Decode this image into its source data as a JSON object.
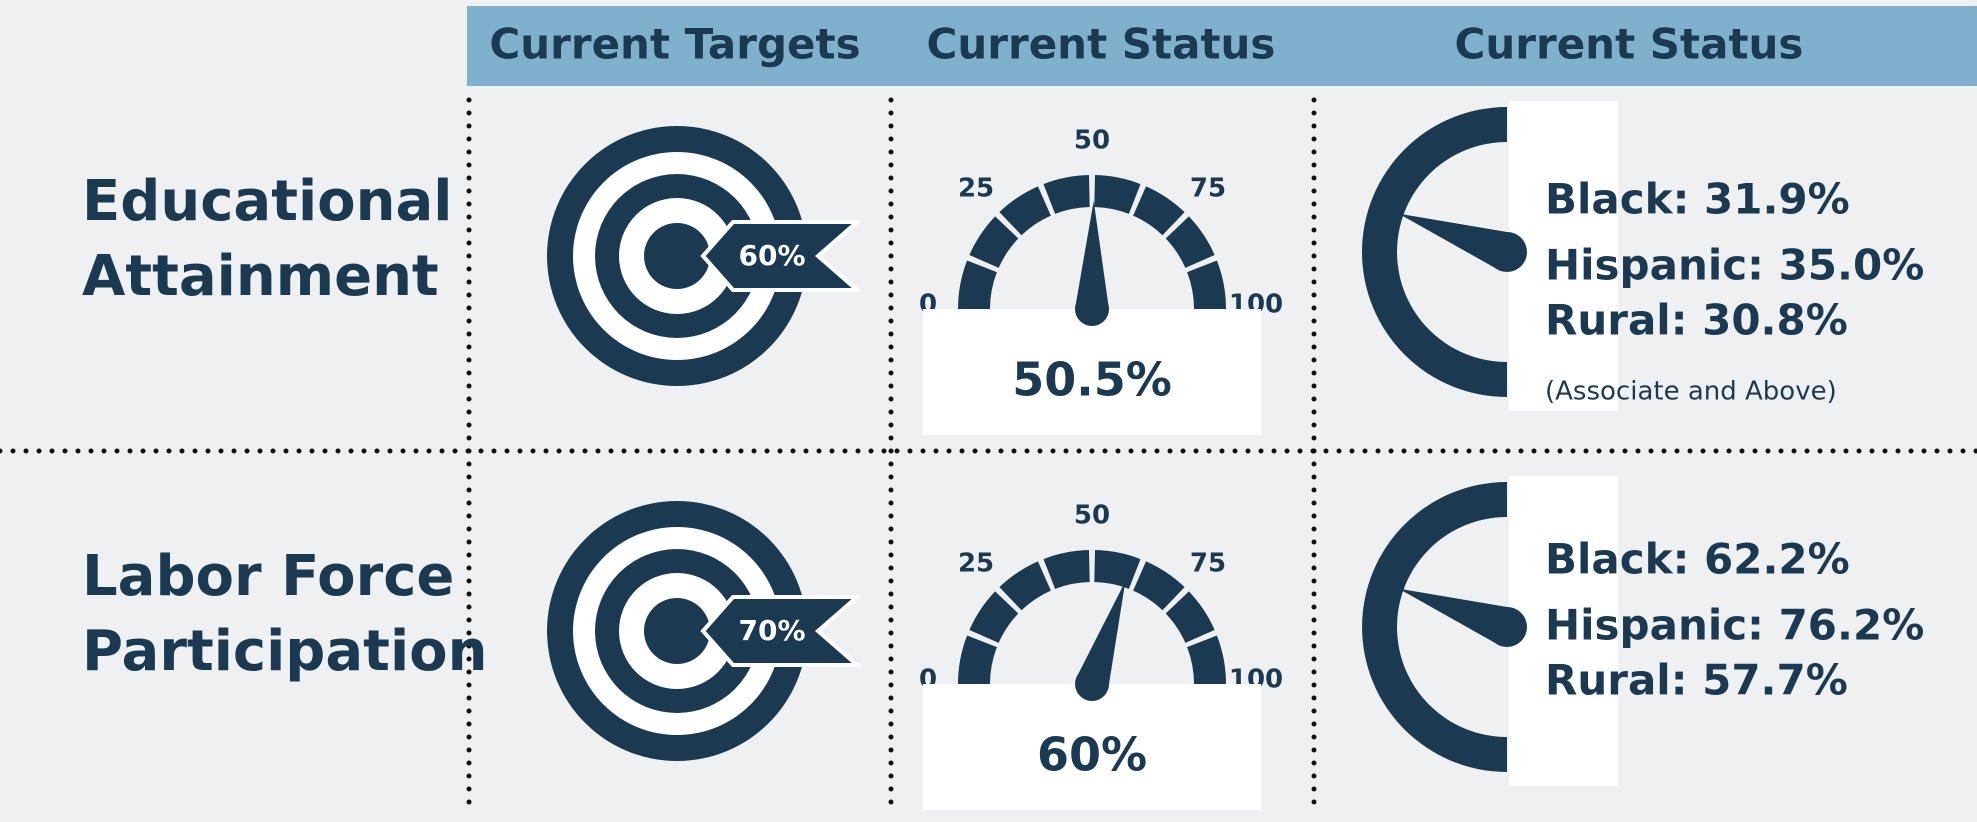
{
  "header": {
    "columns": [
      "Current Targets",
      "Current Status",
      "Current Status"
    ]
  },
  "gauge_ticks": [
    0,
    25,
    50,
    75,
    100
  ],
  "rows": [
    {
      "label": [
        "Educational",
        "Attainment"
      ],
      "target": "60%",
      "status": {
        "value": 50.5,
        "label": "50.5%"
      },
      "breakdown": [
        "Black: 31.9%",
        "Hispanic: 35.0%",
        "Rural: 30.8%"
      ],
      "note": "(Associate and Above)"
    },
    {
      "label": [
        "Labor Force",
        "Participation"
      ],
      "target": "70%",
      "status": {
        "value": 60,
        "label": "60%"
      },
      "breakdown": [
        "Black: 62.2%",
        "Hispanic: 76.2%",
        "Rural: 57.7%"
      ]
    }
  ]
}
